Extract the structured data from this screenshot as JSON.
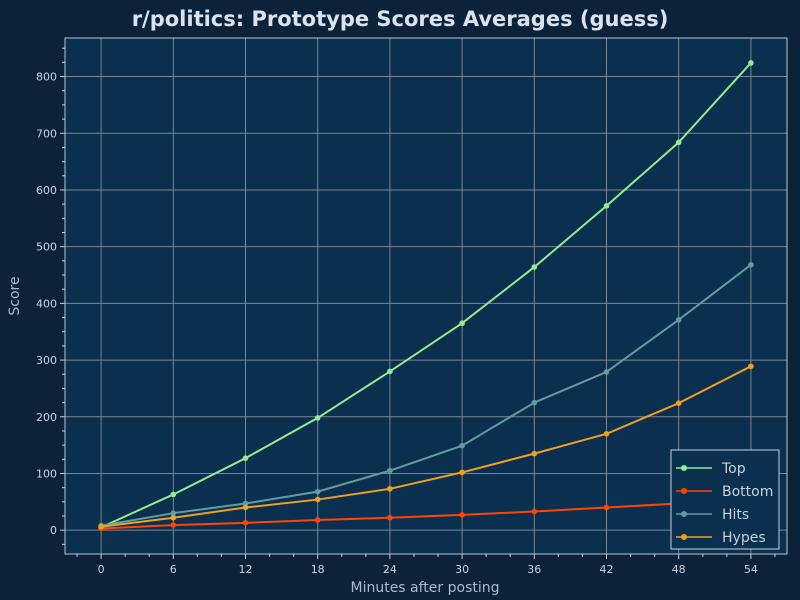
{
  "chart_data": {
    "type": "line",
    "title": "r/politics: Prototype Scores Averages (guess)",
    "xlabel": "Minutes after posting",
    "ylabel": "Score",
    "x": [
      0,
      6,
      12,
      18,
      24,
      30,
      36,
      42,
      48,
      54
    ],
    "xticks": [
      0,
      6,
      12,
      18,
      24,
      30,
      36,
      42,
      48,
      54
    ],
    "yticks": [
      0,
      100,
      200,
      300,
      400,
      500,
      600,
      700,
      800
    ],
    "xlim": [
      -3,
      57
    ],
    "ylim": [
      -42,
      868
    ],
    "grid": true,
    "legend_position": "bottom-right",
    "series": [
      {
        "name": "Top",
        "color": "#90ee90",
        "values": [
          5,
          63,
          127,
          198,
          280,
          365,
          464,
          572,
          684,
          824
        ]
      },
      {
        "name": "Bottom",
        "color": "#ff4500",
        "values": [
          3,
          9,
          13,
          18,
          22,
          27,
          33,
          40,
          47,
          54
        ]
      },
      {
        "name": "Hits",
        "color": "#5f9ea0",
        "values": [
          8,
          30,
          47,
          68,
          105,
          149,
          225,
          279,
          371,
          468
        ]
      },
      {
        "name": "Hypes",
        "color": "#f0a01e",
        "values": [
          6,
          22,
          40,
          54,
          73,
          102,
          135,
          170,
          224,
          289
        ]
      }
    ]
  }
}
